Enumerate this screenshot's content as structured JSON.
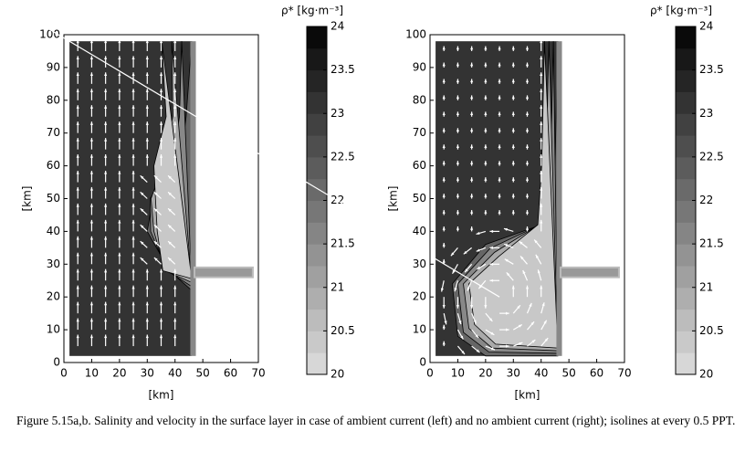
{
  "chart_data": [
    {
      "type": "contour",
      "xlabel": "[km]",
      "ylabel": "[km]",
      "xlim": [
        0,
        70
      ],
      "ylim": [
        0,
        100
      ],
      "xticks": [
        0,
        10,
        20,
        30,
        40,
        50,
        60,
        70
      ],
      "yticks": [
        0,
        10,
        20,
        30,
        40,
        50,
        60,
        70,
        80,
        90,
        100
      ],
      "colorbar_label": "ρ* [kg·m⁻³]",
      "clim": [
        20,
        24
      ],
      "cticks": [
        20,
        20.5,
        21,
        21.5,
        22,
        22.5,
        23,
        23.5,
        24
      ]
    },
    {
      "type": "contour",
      "xlabel": "[km]",
      "ylabel": "[km]",
      "xlim": [
        0,
        70
      ],
      "ylim": [
        0,
        100
      ],
      "xticks": [
        0,
        10,
        20,
        30,
        40,
        50,
        60,
        70
      ],
      "yticks": [
        0,
        10,
        20,
        30,
        40,
        50,
        60,
        70,
        80,
        90,
        100
      ],
      "colorbar_label": "ρ* [kg·m⁻³]",
      "clim": [
        20,
        24
      ],
      "cticks": [
        20,
        20.5,
        21,
        21.5,
        22,
        22.5,
        23,
        23.5,
        24
      ]
    }
  ],
  "caption": "Figure 5.15a,b. Salinity and velocity in the surface layer in case of ambient current (left) and no ambient current (right); isolines at every 0.5 PPT."
}
